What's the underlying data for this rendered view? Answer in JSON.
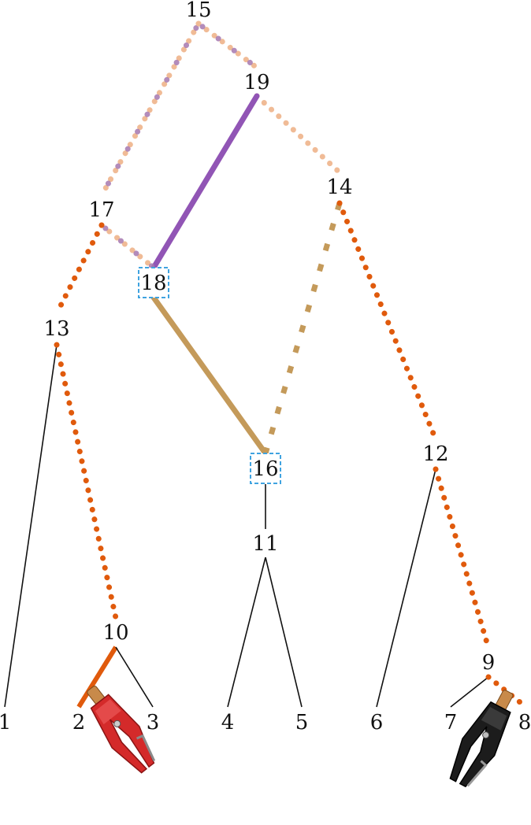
{
  "nodes": [
    {
      "id": "15",
      "label": "15",
      "boxed": false
    },
    {
      "id": "19",
      "label": "19",
      "boxed": false
    },
    {
      "id": "14",
      "label": "14",
      "boxed": false
    },
    {
      "id": "17",
      "label": "17",
      "boxed": false
    },
    {
      "id": "18",
      "label": "18",
      "boxed": true
    },
    {
      "id": "13",
      "label": "13",
      "boxed": false
    },
    {
      "id": "16",
      "label": "16",
      "boxed": true
    },
    {
      "id": "12",
      "label": "12",
      "boxed": false
    },
    {
      "id": "11",
      "label": "11",
      "boxed": false
    },
    {
      "id": "10",
      "label": "10",
      "boxed": false
    },
    {
      "id": "9",
      "label": "9",
      "boxed": false
    },
    {
      "id": "1",
      "label": "1",
      "boxed": false
    },
    {
      "id": "2",
      "label": "2",
      "boxed": false
    },
    {
      "id": "3",
      "label": "3",
      "boxed": false
    },
    {
      "id": "4",
      "label": "4",
      "boxed": false
    },
    {
      "id": "5",
      "label": "5",
      "boxed": false
    },
    {
      "id": "6",
      "label": "6",
      "boxed": false
    },
    {
      "id": "7",
      "label": "7",
      "boxed": false
    },
    {
      "id": "8",
      "label": "8",
      "boxed": false
    }
  ],
  "edges": [
    {
      "from": "15",
      "to": "17",
      "style": "dotted-peach-purple"
    },
    {
      "from": "15",
      "to": "19",
      "style": "dotted-peach-purple"
    },
    {
      "from": "19",
      "to": "14",
      "style": "dotted-peach"
    },
    {
      "from": "19",
      "to": "18",
      "style": "solid-purple"
    },
    {
      "from": "17",
      "to": "18",
      "style": "dotted-peach-purple"
    },
    {
      "from": "17",
      "to": "13",
      "style": "dotted-orange"
    },
    {
      "from": "14",
      "to": "16",
      "style": "dashed-tan"
    },
    {
      "from": "14",
      "to": "12",
      "style": "dotted-orange"
    },
    {
      "from": "18",
      "to": "16",
      "style": "solid-tan"
    },
    {
      "from": "13",
      "to": "1",
      "style": "thin-black"
    },
    {
      "from": "13",
      "to": "10",
      "style": "dotted-orange"
    },
    {
      "from": "16",
      "to": "11",
      "style": "thin-black"
    },
    {
      "from": "11",
      "to": "4",
      "style": "thin-black"
    },
    {
      "from": "11",
      "to": "5",
      "style": "thin-black"
    },
    {
      "from": "12",
      "to": "6",
      "style": "thin-black"
    },
    {
      "from": "12",
      "to": "9",
      "style": "dotted-orange"
    },
    {
      "from": "10",
      "to": "2",
      "style": "solid-orange"
    },
    {
      "from": "10",
      "to": "3",
      "style": "thin-black"
    },
    {
      "from": "9",
      "to": "7",
      "style": "thin-black"
    },
    {
      "from": "9",
      "to": "8",
      "style": "dotted-orange"
    }
  ],
  "clips": [
    {
      "name": "red-alligator-clip",
      "color": "#d42a2a",
      "attached_to": "2"
    },
    {
      "name": "black-alligator-clip",
      "color": "#1c1c1c",
      "attached_to": "8"
    }
  ],
  "colors": {
    "dotted_orange": "#e05a0c",
    "dotted_peach": "#f0bb96",
    "dotted_purple": "#a678b0",
    "solid_purple": "#9155b5",
    "solid_tan": "#c49a5a",
    "thin_black": "#111111",
    "box": "#3fa3e0"
  }
}
